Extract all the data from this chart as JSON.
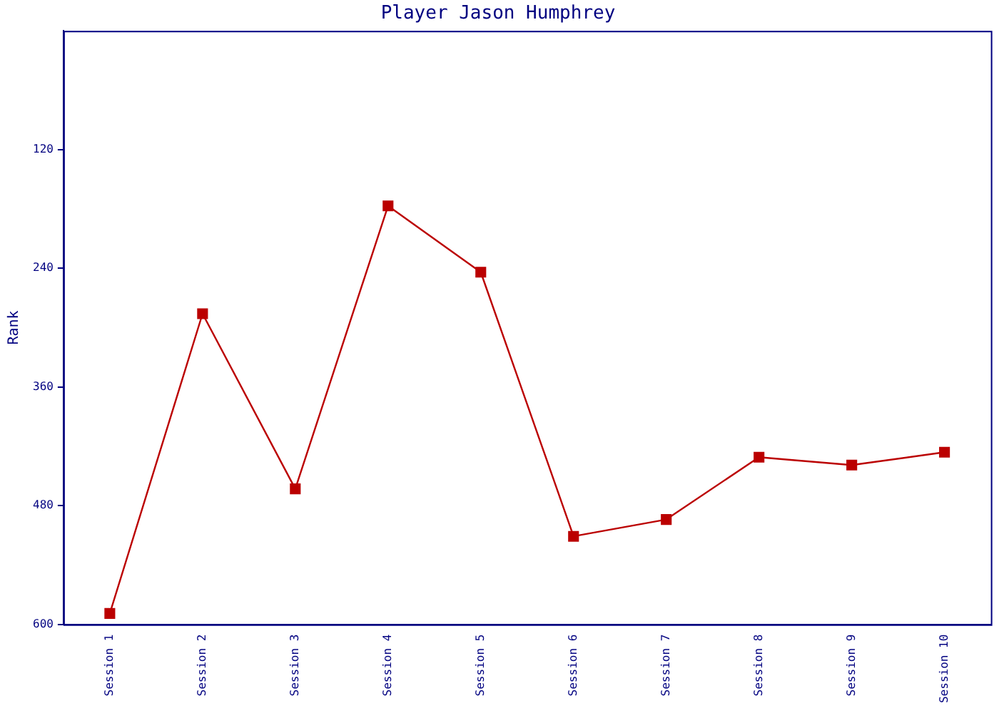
{
  "chart_data": {
    "type": "line",
    "title": "Player Jason Humphrey",
    "ylabel": "Rank",
    "categories": [
      "Session 1",
      "Session 2",
      "Session 3",
      "Session 4",
      "Session 5",
      "Session 6",
      "Session 7",
      "Session 8",
      "Session 9",
      "Session 10"
    ],
    "series": [
      {
        "color": "#bb0000",
        "values": [
          589,
          286,
          463,
          177,
          244,
          511,
          494,
          431,
          439,
          426
        ]
      }
    ],
    "ylim": [
      600,
      0
    ],
    "yticks": [
      120,
      240,
      360,
      480,
      600
    ],
    "grid": false,
    "legend": false,
    "marker": "square",
    "line_style": "solid"
  }
}
